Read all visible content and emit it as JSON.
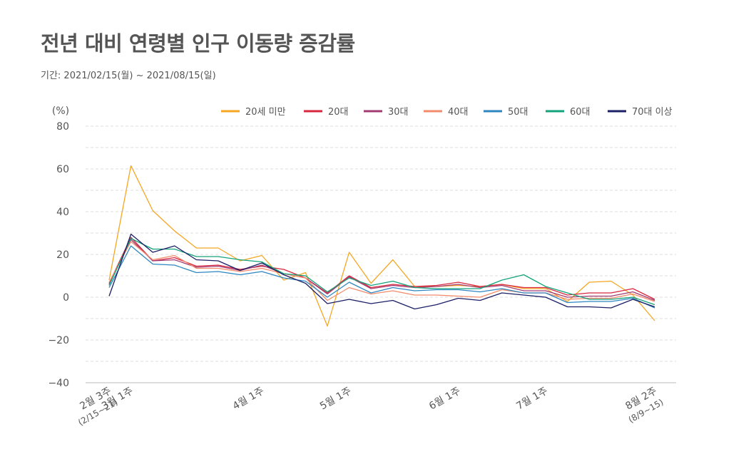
{
  "title": "전년 대비 연령별 인구 이동량 증감률",
  "subtitle": "기간: 2021/02/15(월) ~ 2021/08/15(일)",
  "chart_data": {
    "type": "line",
    "ylabel": "(%)",
    "ylim": [
      -40,
      80
    ],
    "yticks": [
      80,
      60,
      40,
      20,
      0,
      -20,
      -40
    ],
    "x_count": 26,
    "x_tick_labels": [
      {
        "i": 0,
        "lines": [
          "2월 3주",
          "(2/15~21)"
        ]
      },
      {
        "i": 1,
        "lines": [
          "3월 1주"
        ]
      },
      {
        "i": 7,
        "lines": [
          "4월 1주"
        ]
      },
      {
        "i": 11,
        "lines": [
          "5월 1주"
        ]
      },
      {
        "i": 16,
        "lines": [
          "6월 1주"
        ]
      },
      {
        "i": 20,
        "lines": [
          "7월 1주"
        ]
      },
      {
        "i": 25,
        "lines": [
          "8월 2주",
          "(8/9~15)"
        ]
      }
    ],
    "series": [
      {
        "name": "20세 미만",
        "color": "#F5A623",
        "values": [
          8,
          61.5,
          40.5,
          31,
          23,
          23,
          17,
          19.5,
          8,
          11.5,
          -13.5,
          21,
          6.5,
          17.5,
          5,
          5,
          5.5,
          5,
          6,
          4,
          4,
          -2,
          7,
          7.5,
          1,
          -11
        ]
      },
      {
        "name": "20대",
        "color": "#D7263D",
        "values": [
          6.5,
          28,
          17,
          18.5,
          14.5,
          15,
          13,
          14.5,
          13,
          9,
          2,
          10,
          4.5,
          6,
          5,
          5.5,
          7,
          5,
          6,
          4.5,
          4.5,
          1,
          2,
          2,
          4,
          -1
        ]
      },
      {
        "name": "30대",
        "color": "#A23B72",
        "values": [
          6,
          27,
          17,
          17.5,
          14,
          14.5,
          12.5,
          15,
          11,
          9,
          1.5,
          9.5,
          4,
          5.5,
          4.5,
          5,
          6,
          4.5,
          5.5,
          3,
          3,
          0,
          0.5,
          0.5,
          2.5,
          -1.5
        ]
      },
      {
        "name": "40대",
        "color": "#F28B6B",
        "values": [
          7,
          26,
          17.5,
          19.5,
          13.5,
          13.5,
          12,
          13.5,
          11,
          9,
          -1.5,
          4.5,
          1.5,
          3,
          1,
          1,
          0.5,
          0,
          3.5,
          2,
          2,
          -1,
          -0.5,
          -0.5,
          1.5,
          -2
        ]
      },
      {
        "name": "50대",
        "color": "#2E86C1",
        "values": [
          4.5,
          24,
          15.5,
          15,
          11.5,
          12,
          10.5,
          12,
          9,
          7.5,
          0,
          7,
          2,
          4.5,
          3,
          3.5,
          3.5,
          2.5,
          4,
          2,
          2,
          -2.5,
          -2,
          -2,
          -0.5,
          -5
        ]
      },
      {
        "name": "60대",
        "color": "#13A37A",
        "values": [
          5.5,
          27.5,
          22.5,
          22.5,
          19,
          19,
          17.5,
          16.5,
          11,
          10,
          2.5,
          9,
          5.5,
          7.5,
          4.5,
          4,
          4,
          4,
          8,
          10.5,
          5,
          2,
          -1,
          -1,
          0,
          -3.5
        ]
      },
      {
        "name": "70대 이상",
        "color": "#1B1F66",
        "values": [
          0.5,
          29.5,
          21,
          24,
          17.5,
          17,
          12.5,
          16,
          10.5,
          6.5,
          -3,
          -1,
          -3,
          -1.5,
          -5.5,
          -3.5,
          -0.5,
          -1.5,
          2,
          1,
          0,
          -4.5,
          -4.5,
          -5,
          -1,
          -4.5
        ]
      }
    ]
  }
}
